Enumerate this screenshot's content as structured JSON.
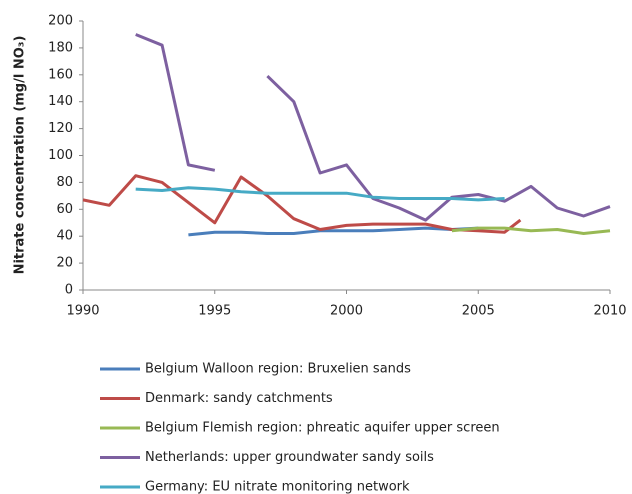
{
  "chart_data": {
    "type": "line",
    "y_label": "Nitrate concentration (mg/l NO₃)",
    "xlim": [
      1990,
      2010
    ],
    "xticks": [
      1990,
      1995,
      2000,
      2005,
      2010
    ],
    "ylim": [
      0,
      200
    ],
    "yticks": [
      0,
      20,
      40,
      60,
      80,
      100,
      120,
      140,
      160,
      180,
      200
    ],
    "grid": false,
    "legend": "bottom",
    "series": [
      {
        "name": "Belgium Walloon region: Bruxelien sands",
        "color": "#4a7ebb",
        "x": [
          1994,
          1995,
          1996,
          1997,
          1998,
          1999,
          2000,
          2001,
          2002,
          2003,
          2004,
          2005
        ],
        "values": [
          41,
          43,
          43,
          42,
          42,
          44,
          44,
          44,
          45,
          46,
          45,
          46
        ]
      },
      {
        "name": "Denmark: sandy catchments",
        "color": "#be4b48",
        "x": [
          1990,
          1991,
          1992,
          1993,
          1994,
          1995,
          1996,
          1997,
          1998,
          1999,
          2000,
          2001,
          2002,
          2003,
          2004,
          2005,
          2006,
          2006.6
        ],
        "values": [
          67,
          63,
          85,
          80,
          65,
          50,
          84,
          70,
          53,
          45,
          48,
          49,
          49,
          49,
          45,
          44,
          43,
          52
        ]
      },
      {
        "name": "Belgium Flemish region: phreatic aquifer upper screen",
        "color": "#98b954",
        "x": [
          2004,
          2005,
          2006,
          2007,
          2008,
          2009,
          2010
        ],
        "values": [
          44,
          46,
          46,
          44,
          45,
          42,
          44
        ]
      },
      {
        "name": "Netherlands: upper groundwater sandy soils",
        "color": "#7d60a0",
        "x": [
          1992,
          1993,
          1994,
          1995,
          1996,
          1997,
          1998,
          1999,
          2000,
          2001,
          2002,
          2003,
          2004,
          2005,
          2006,
          2007,
          2008,
          2009,
          2010
        ],
        "values": [
          190,
          182,
          93,
          89,
          null,
          159,
          140,
          87,
          93,
          68,
          61,
          52,
          69,
          71,
          66,
          77,
          61,
          55,
          62
        ]
      },
      {
        "name": "Germany: EU nitrate monitoring network",
        "color": "#46aac5",
        "x": [
          1992,
          1993,
          1994,
          1995,
          1996,
          1997,
          1998,
          1999,
          2000,
          2001,
          2002,
          2003,
          2004,
          2005,
          2006
        ],
        "values": [
          75,
          74,
          76,
          75,
          73,
          72,
          72,
          72,
          72,
          69,
          68,
          68,
          68,
          67,
          68
        ]
      }
    ]
  }
}
